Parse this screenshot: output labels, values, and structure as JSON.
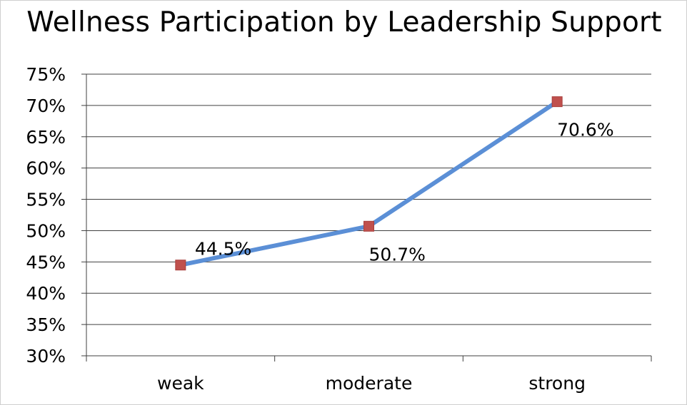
{
  "chart_data": {
    "type": "line",
    "title": "Wellness Participation by Leadership Support",
    "xlabel": "",
    "ylabel": "",
    "categories": [
      "weak",
      "moderate",
      "strong"
    ],
    "series": [
      {
        "values": [
          44.5,
          50.7,
          70.6
        ],
        "labels": [
          "44.5%",
          "50.7%",
          "70.6%"
        ]
      }
    ],
    "ylim": [
      30,
      75
    ],
    "ytick_step": 5,
    "yticks": [
      "30%",
      "35%",
      "40%",
      "45%",
      "50%",
      "55%",
      "60%",
      "65%",
      "70%",
      "75%"
    ],
    "grid": true,
    "legend": "none",
    "colors": {
      "line": "#5b8fd6",
      "marker": "#c0504d",
      "grid": "#404040"
    }
  }
}
